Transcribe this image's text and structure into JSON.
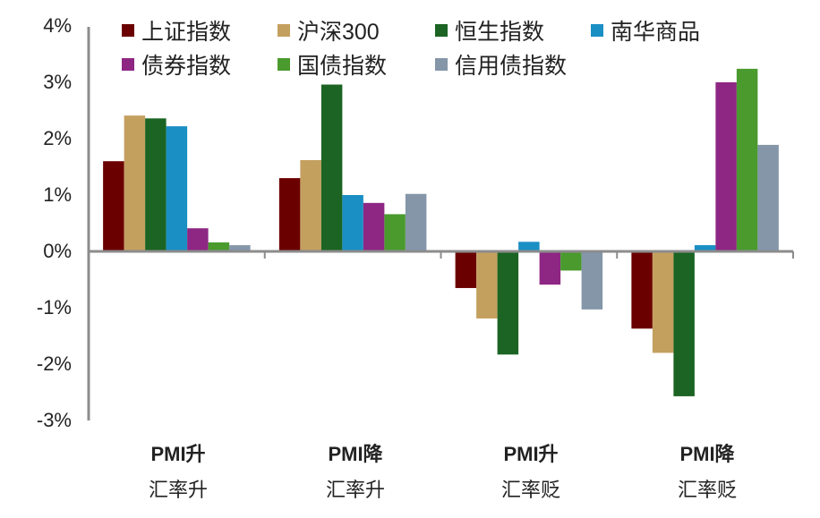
{
  "chart_data": {
    "type": "bar",
    "title": "",
    "xlabel": "",
    "ylabel": "",
    "ylim": [
      -0.03,
      0.04
    ],
    "yticks": [
      "4%",
      "3%",
      "2%",
      "1%",
      "0%",
      "-1%",
      "-2%",
      "-3%"
    ],
    "ytick_values": [
      0.04,
      0.03,
      0.02,
      0.01,
      0.0,
      -0.01,
      -0.02,
      -0.03
    ],
    "grid": false,
    "legend_position": "top",
    "categories": [
      "PMI升 汇率升",
      "PMI降 汇率升",
      "PMI升 汇率贬",
      "PMI降 汇率贬"
    ],
    "category_lines": [
      {
        "line1": "PMI升",
        "line2": "汇率升"
      },
      {
        "line1": "PMI降",
        "line2": "汇率升"
      },
      {
        "line1": "PMI升",
        "line2": "汇率贬"
      },
      {
        "line1": "PMI降",
        "line2": "汇率贬"
      }
    ],
    "series": [
      {
        "name": "上证指数",
        "color": "#6b0000",
        "values": [
          0.016,
          0.013,
          -0.0065,
          -0.0137
        ]
      },
      {
        "name": "沪深300",
        "color": "#c4a05f",
        "values": [
          0.0241,
          0.0162,
          -0.0119,
          -0.018
        ]
      },
      {
        "name": "恒生指数",
        "color": "#1b6423",
        "values": [
          0.0236,
          0.0296,
          -0.0183,
          -0.0257
        ]
      },
      {
        "name": "南华商品",
        "color": "#1a8fc4",
        "values": [
          0.0222,
          0.01,
          0.0017,
          0.0011
        ]
      },
      {
        "name": "债券指数",
        "color": "#8e2683",
        "values": [
          0.0041,
          0.0086,
          -0.0059,
          0.03
        ]
      },
      {
        "name": "国债指数",
        "color": "#4a9a2e",
        "values": [
          0.0016,
          0.0066,
          -0.0034,
          0.0324
        ]
      },
      {
        "name": "信用债指数",
        "color": "#8496a8",
        "values": [
          0.0011,
          0.0102,
          -0.0103,
          0.0189
        ]
      }
    ]
  },
  "legend": {
    "items": [
      {
        "label": "上证指数",
        "color": "#6b0000"
      },
      {
        "label": "沪深300",
        "color": "#c4a05f"
      },
      {
        "label": "恒生指数",
        "color": "#1b6423"
      },
      {
        "label": "南华商品",
        "color": "#1a8fc4"
      },
      {
        "label": "债券指数",
        "color": "#8e2683"
      },
      {
        "label": "国债指数",
        "color": "#4a9a2e"
      },
      {
        "label": "信用债指数",
        "color": "#8496a8"
      }
    ]
  },
  "axis_color": "#8c8c8c"
}
